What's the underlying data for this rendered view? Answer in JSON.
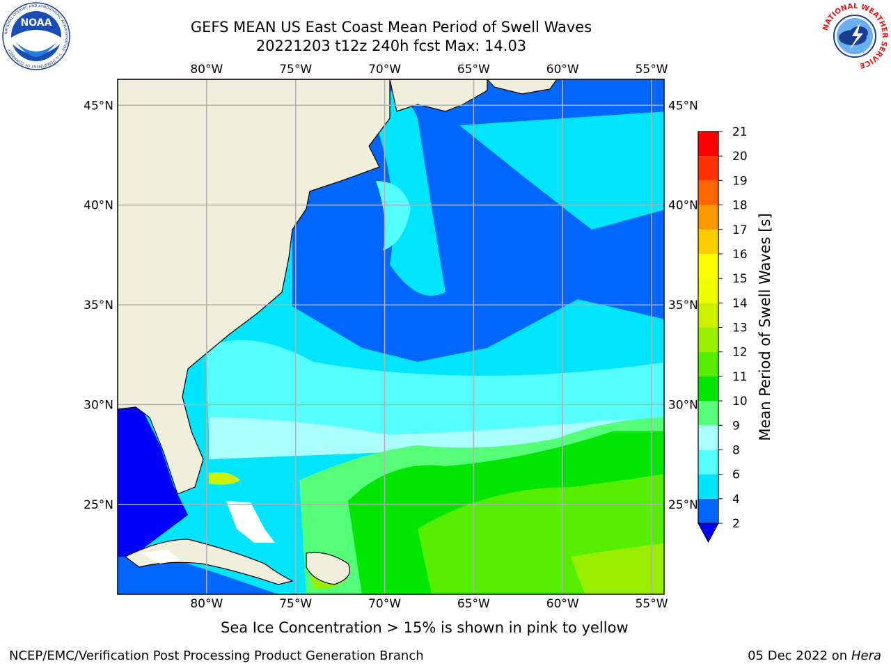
{
  "header": {
    "title_line1": "GEFS MEAN US East Coast Mean Period of Swell Waves",
    "title_line2": "20221203 t12z 240h fcst   Max: 14.03"
  },
  "logos": {
    "left": "NOAA",
    "left_ring_text": "NATIONAL OCEANIC AND ATMOSPHERIC ADMINISTRATION · U.S. DEPARTMENT OF COMMERCE",
    "right_ring_text": "NATIONAL WEATHER SERVICE"
  },
  "map": {
    "lon_ticks": [
      "80°W",
      "75°W",
      "70°W",
      "65°W",
      "60°W",
      "55°W"
    ],
    "lat_ticks": [
      "45°N",
      "40°N",
      "35°N",
      "30°N",
      "25°N"
    ],
    "lon_values": [
      -80,
      -75,
      -70,
      -65,
      -60,
      -55
    ],
    "lat_values": [
      45,
      40,
      35,
      30,
      25
    ],
    "extent": {
      "lon_min": -85,
      "lon_max": -54.3,
      "lat_min": 20.5,
      "lat_max": 46.3
    }
  },
  "colorbar": {
    "title": "Mean Period of Swell Waves [s]",
    "ticks": [
      "2",
      "4",
      "6",
      "8",
      "9",
      "10",
      "11",
      "12",
      "13",
      "14",
      "15",
      "16",
      "17",
      "18",
      "19",
      "20",
      "21"
    ],
    "levels": [
      2,
      4,
      6,
      8,
      9,
      10,
      11,
      12,
      13,
      14,
      15,
      16,
      17,
      18,
      19,
      20,
      21
    ],
    "colors": [
      "#0066ff",
      "#00e5ff",
      "#55ffff",
      "#aaffff",
      "#55ff77",
      "#00e600",
      "#55ee00",
      "#99ee00",
      "#ccf000",
      "#eeff00",
      "#ffff00",
      "#ffcc00",
      "#ff9900",
      "#ff6600",
      "#ff3300",
      "#ff0000"
    ],
    "under_color": "#0000ff"
  },
  "colors": {
    "land": "#efefdc",
    "grid": "#b0b0b0",
    "ocean_lowest": "#0000ff"
  },
  "footer": {
    "note": "Sea Ice Concentration > 15% is shown in pink to yellow",
    "credit": "NCEP/EMC/Verification Post Processing Product Generation Branch",
    "date": "05 Dec 2022 on",
    "host": "Hera"
  }
}
